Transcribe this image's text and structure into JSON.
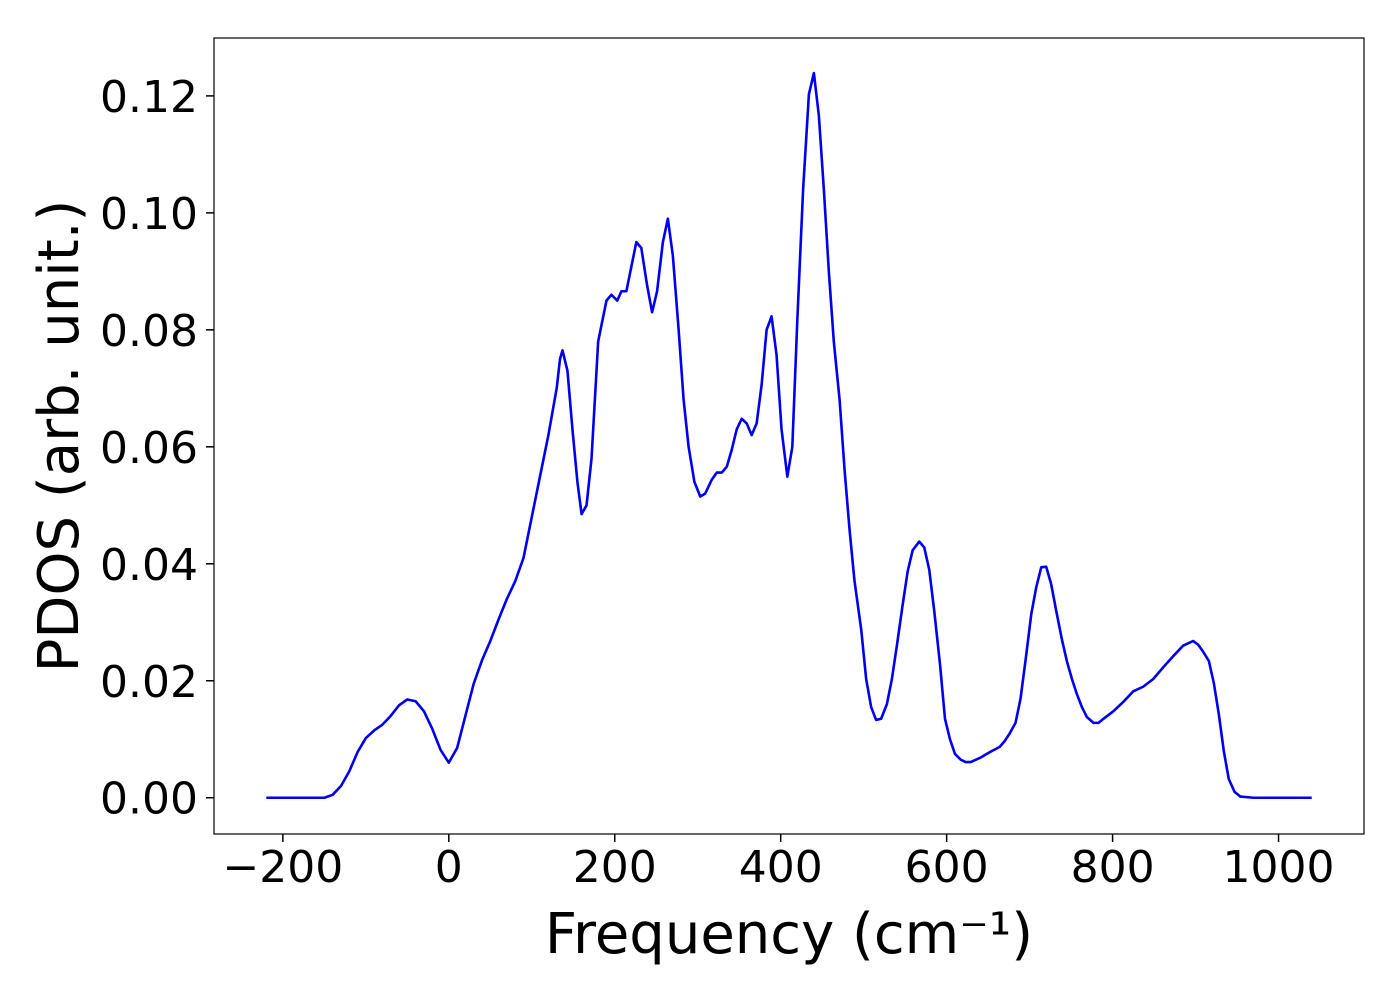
{
  "chart_data": {
    "type": "line",
    "xlabel": "Frequency (cm⁻¹)",
    "ylabel": "PDOS (arb. unit.)",
    "xlim": [
      -283,
      1103
    ],
    "ylim": [
      -0.0062,
      0.1299
    ],
    "xticks": [
      {
        "value": -200,
        "label": "−200"
      },
      0,
      200,
      400,
      600,
      800,
      1000
    ],
    "yticks": [
      {
        "value": 0,
        "label": "0.00"
      },
      {
        "value": 0.02,
        "label": "0.02"
      },
      {
        "value": 0.04,
        "label": "0.04"
      },
      {
        "value": 0.06,
        "label": "0.06"
      },
      {
        "value": 0.08,
        "label": "0.08"
      },
      {
        "value": 0.1,
        "label": "0.10"
      },
      {
        "value": 0.12,
        "label": "0.12"
      }
    ],
    "grid": false,
    "x": [
      -220,
      -150,
      -140,
      -130,
      -120,
      -110,
      -100,
      -90,
      -80,
      -70,
      -60,
      -50,
      -40,
      -30,
      -20,
      -10,
      0,
      10,
      20,
      30,
      40,
      50,
      60,
      70,
      80,
      90,
      100,
      110,
      120,
      130,
      134,
      137,
      143,
      149,
      155,
      160,
      166,
      172,
      180,
      190,
      196,
      203,
      208,
      214,
      226,
      232,
      239,
      245,
      251,
      258,
      264,
      270,
      277,
      283,
      289,
      296,
      303,
      309,
      317,
      323,
      329,
      335,
      341,
      347,
      353,
      359,
      365,
      371,
      377,
      383,
      389,
      395,
      401,
      408,
      414,
      420,
      427,
      434,
      440,
      446,
      452,
      458,
      464,
      471,
      477,
      483,
      489,
      497,
      503,
      509,
      515,
      521,
      528,
      534,
      540,
      547,
      553,
      559,
      567,
      573,
      579,
      585,
      592,
      598,
      604,
      610,
      617,
      623,
      629,
      640,
      652,
      664,
      670,
      676,
      683,
      689,
      695,
      702,
      708,
      714,
      720,
      726,
      732,
      739,
      745,
      751,
      757,
      763,
      769,
      777,
      783,
      789,
      801,
      813,
      825,
      837,
      849,
      861,
      873,
      885,
      897,
      903,
      909,
      916,
      922,
      928,
      934,
      940,
      947,
      954,
      970,
      1040
    ],
    "series": [
      {
        "name": "PDOS",
        "color": "#0000ee",
        "values": [
          0,
          0,
          0.0005,
          0.002,
          0.0045,
          0.0078,
          0.0102,
          0.0115,
          0.0125,
          0.014,
          0.0158,
          0.0168,
          0.0165,
          0.0148,
          0.0118,
          0.0082,
          0.006,
          0.0085,
          0.014,
          0.0195,
          0.0235,
          0.0268,
          0.0305,
          0.034,
          0.037,
          0.041,
          0.048,
          0.055,
          0.062,
          0.07,
          0.075,
          0.0765,
          0.073,
          0.063,
          0.054,
          0.0485,
          0.05,
          0.058,
          0.078,
          0.085,
          0.086,
          0.085,
          0.0866,
          0.0866,
          0.095,
          0.094,
          0.0876,
          0.083,
          0.0866,
          0.095,
          0.099,
          0.0927,
          0.08,
          0.068,
          0.06,
          0.054,
          0.0515,
          0.052,
          0.0544,
          0.0556,
          0.0556,
          0.0566,
          0.0595,
          0.063,
          0.0648,
          0.064,
          0.062,
          0.064,
          0.0706,
          0.08,
          0.0823,
          0.0757,
          0.063,
          0.0549,
          0.06,
          0.0816,
          0.104,
          0.1203,
          0.1239,
          0.1166,
          0.104,
          0.09,
          0.078,
          0.068,
          0.056,
          0.0458,
          0.037,
          0.0288,
          0.0203,
          0.0155,
          0.0133,
          0.0135,
          0.016,
          0.0203,
          0.026,
          0.033,
          0.0387,
          0.0423,
          0.0438,
          0.0428,
          0.039,
          0.032,
          0.0228,
          0.0135,
          0.01,
          0.0075,
          0.0065,
          0.0061,
          0.0061,
          0.0068,
          0.0078,
          0.0087,
          0.0097,
          0.011,
          0.0128,
          0.0169,
          0.0234,
          0.0314,
          0.036,
          0.0394,
          0.0395,
          0.0365,
          0.032,
          0.027,
          0.0233,
          0.0203,
          0.0177,
          0.0155,
          0.0138,
          0.0128,
          0.0128,
          0.0135,
          0.0148,
          0.0164,
          0.0182,
          0.019,
          0.0203,
          0.0223,
          0.0242,
          0.026,
          0.0268,
          0.0262,
          0.025,
          0.0234,
          0.0196,
          0.0143,
          0.008,
          0.0032,
          0.001,
          0.0002,
          0,
          0
        ]
      }
    ]
  }
}
